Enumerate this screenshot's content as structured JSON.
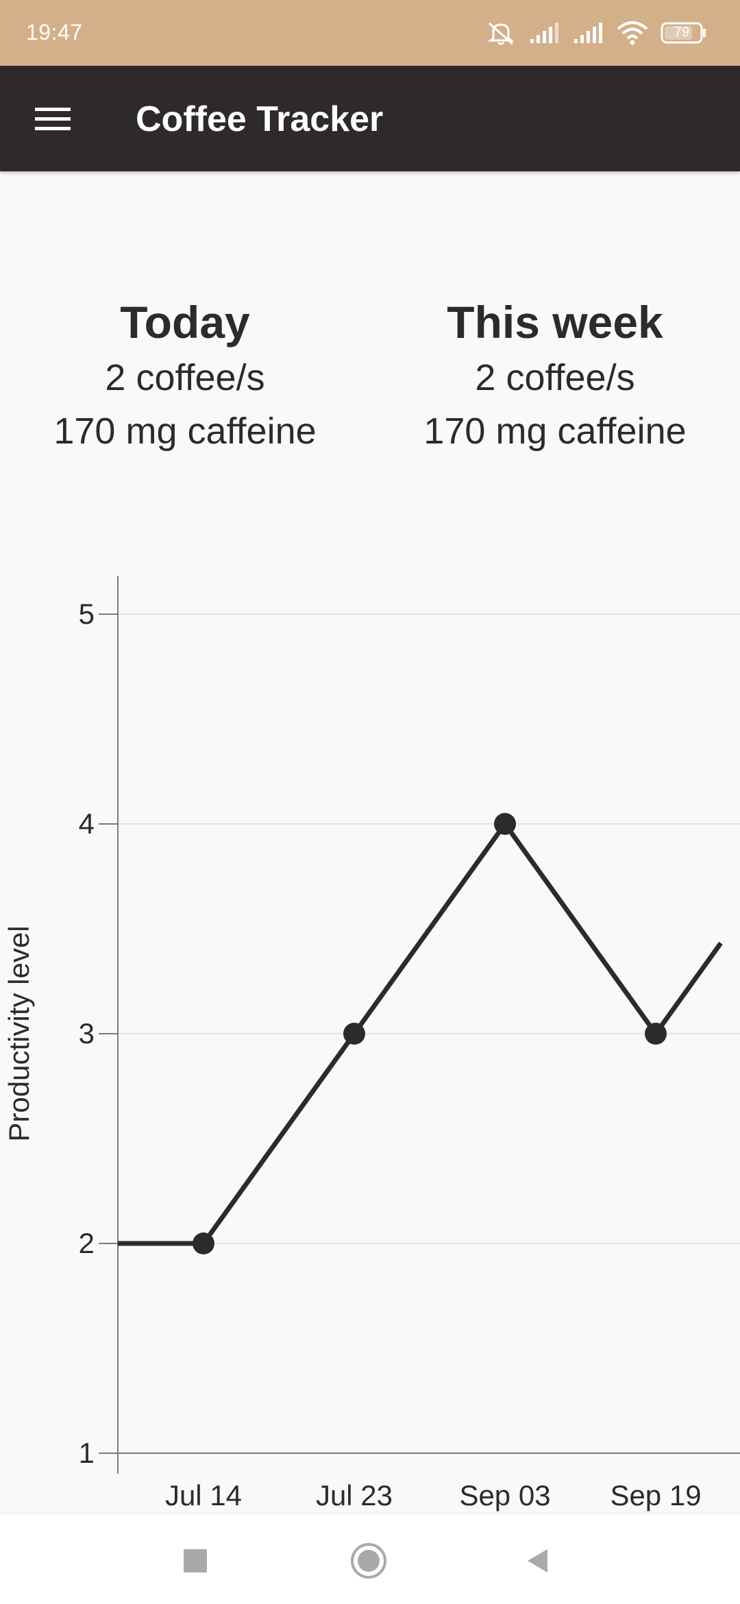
{
  "status_bar": {
    "time": "19:47",
    "battery": "79",
    "icons": [
      "mute-icon",
      "signal-icon",
      "signal-icon",
      "wifi-icon",
      "battery-icon"
    ]
  },
  "app_bar": {
    "title": "Coffee Tracker",
    "menu_icon": "hamburger-menu-icon"
  },
  "summary": {
    "today": {
      "title": "Today",
      "coffees": "2 coffee/s",
      "caffeine": "170 mg caffeine"
    },
    "week": {
      "title": "This week",
      "coffees": "2 coffee/s",
      "caffeine": "170 mg caffeine"
    }
  },
  "chart_data": {
    "type": "line",
    "title": "",
    "xlabel": "",
    "ylabel": "Productivity level",
    "categories": [
      "Jul 14",
      "Jul 23",
      "Sep 03",
      "Sep 19"
    ],
    "y_ticks": [
      "1",
      "2",
      "3",
      "4",
      "5"
    ],
    "ylim": [
      1,
      5
    ],
    "series": [
      {
        "values": [
          2,
          3,
          4,
          3
        ]
      }
    ],
    "grid": true,
    "colors": {
      "line": "#2d2a2b",
      "grid": "#e3e3e3",
      "axis": "#7a7a7a"
    }
  },
  "nav_bar": {
    "icons": [
      "recents-square-icon",
      "home-circle-icon",
      "back-triangle-icon"
    ]
  }
}
